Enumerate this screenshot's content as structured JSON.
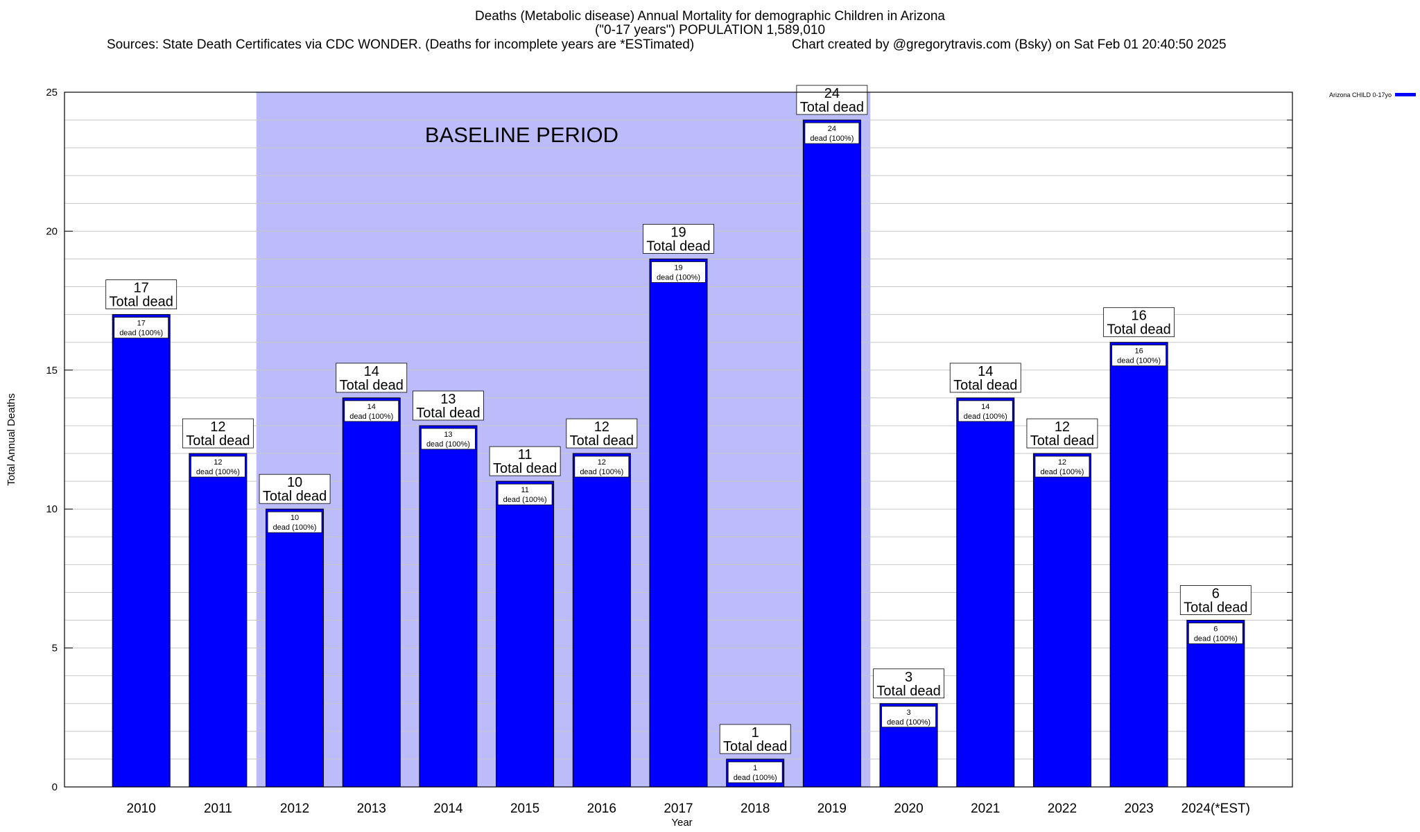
{
  "header": {
    "title_line1": "Deaths (Metabolic disease) Annual Mortality for demographic Children in Arizona",
    "title_line2": "(\"0-17 years\") POPULATION 1,589,010",
    "sources": "Sources: State Death Certificates via CDC WONDER. (Deaths for incomplete years are *ESTimated)",
    "credit": "Chart created by @gregorytravis.com (Bsky) on Sat Feb 01 20:40:50 2025"
  },
  "legend": {
    "label": "Arizona CHILD 0-17yo",
    "color": "#0000ff"
  },
  "colors": {
    "bar": "#0000ff",
    "baseline_band": "#bcbcfa",
    "grid": "#c8c8c8"
  },
  "chart_data": {
    "type": "bar",
    "title": "Deaths (Metabolic disease) Annual Mortality for demographic Children in Arizona",
    "xlabel": "Year",
    "ylabel": "Total Annual Deaths",
    "ylim": [
      0,
      25
    ],
    "yticks": [
      0,
      5,
      10,
      15,
      20,
      25
    ],
    "categories": [
      "2010",
      "2011",
      "2012",
      "2013",
      "2014",
      "2015",
      "2016",
      "2017",
      "2018",
      "2019",
      "2020",
      "2021",
      "2022",
      "2023",
      "2024(*EST)"
    ],
    "series": [
      {
        "name": "Arizona CHILD 0-17yo",
        "values": [
          17,
          12,
          10,
          14,
          13,
          11,
          12,
          19,
          1,
          24,
          3,
          14,
          12,
          16,
          6
        ]
      }
    ],
    "total_label_suffix": "Total dead",
    "inner_label_suffix": "dead (100%)",
    "baseline": {
      "label": "BASELINE PERIOD",
      "start": "2012",
      "end": "2019"
    },
    "grid": true,
    "legend_position": "top-right"
  }
}
